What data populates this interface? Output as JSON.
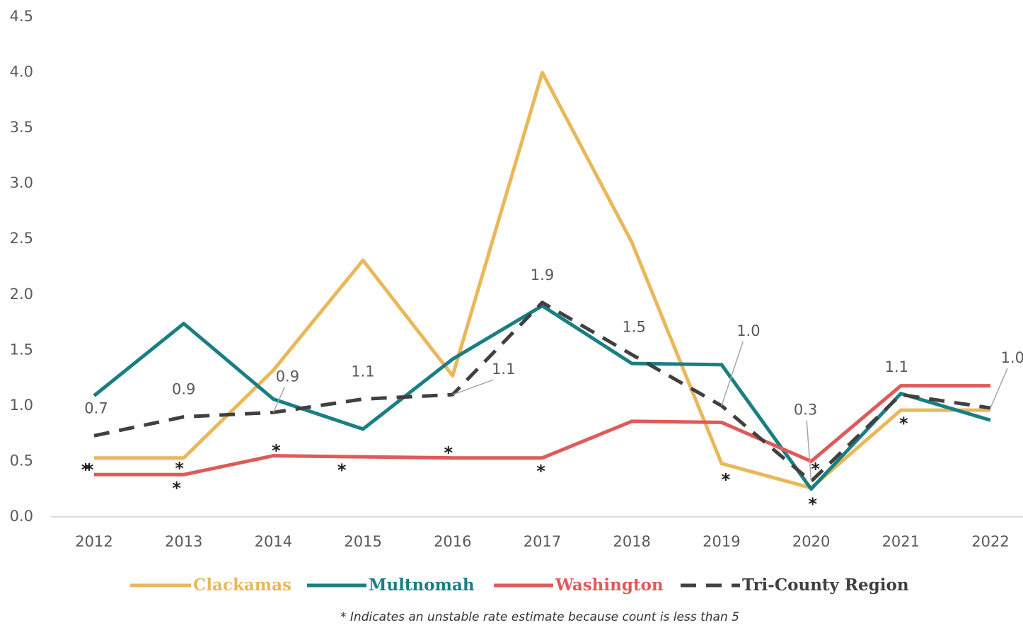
{
  "chart_data": {
    "type": "line",
    "categories": [
      "2012",
      "2013",
      "2014",
      "2015",
      "2016",
      "2017",
      "2018",
      "2019",
      "2020",
      "2021",
      "2022"
    ],
    "series": [
      {
        "name": "Clackamas",
        "color": "#e8b85a",
        "values": [
          0.53,
          0.53,
          1.32,
          2.31,
          1.27,
          4.0,
          2.47,
          0.48,
          0.26,
          0.96,
          0.96
        ],
        "markers": [
          "*",
          "*",
          null,
          null,
          null,
          null,
          null,
          "*",
          "*",
          "*",
          null
        ]
      },
      {
        "name": "Multnomah",
        "color": "#1a7f82",
        "values": [
          1.09,
          1.74,
          1.06,
          0.79,
          1.42,
          1.9,
          1.38,
          1.37,
          0.25,
          1.11,
          0.87
        ]
      },
      {
        "name": "Washington",
        "color": "#e05a5a",
        "values": [
          0.38,
          0.38,
          0.55,
          0.54,
          0.53,
          0.53,
          0.86,
          0.85,
          0.5,
          1.18,
          1.18
        ],
        "markers": [
          "*",
          "*",
          "*",
          "*",
          "*",
          "*",
          null,
          null,
          "*",
          null,
          null
        ]
      },
      {
        "name": "Tri-County Region",
        "color": "#404040",
        "style": "dashed",
        "values": [
          0.73,
          0.9,
          0.94,
          1.06,
          1.1,
          1.93,
          1.46,
          1.0,
          0.32,
          1.1,
          0.98
        ],
        "value_labels": [
          "0.7",
          "0.9",
          "0.9",
          "1.1",
          "1.1",
          "1.9",
          "1.5",
          "1.0",
          "0.3",
          "1.1",
          "1.0"
        ]
      }
    ],
    "ylim": [
      0,
      4.5
    ],
    "yticks": [
      {
        "value": 0,
        "label": "0.0"
      },
      {
        "value": 0.5,
        "label": "0.5"
      },
      {
        "value": 1,
        "label": "1.0"
      },
      {
        "value": 1.5,
        "label": "1.5"
      },
      {
        "value": 2,
        "label": "2.0"
      },
      {
        "value": 2.5,
        "label": "2.5"
      },
      {
        "value": 3,
        "label": "3.0"
      },
      {
        "value": 3.5,
        "label": "3.5"
      },
      {
        "value": 4,
        "label": "4.0"
      },
      {
        "value": 4.5,
        "label": "4.5"
      }
    ],
    "grid": false,
    "legend": "bottom",
    "note": "* Indicates an unstable rate estimate because count is less than 5"
  }
}
